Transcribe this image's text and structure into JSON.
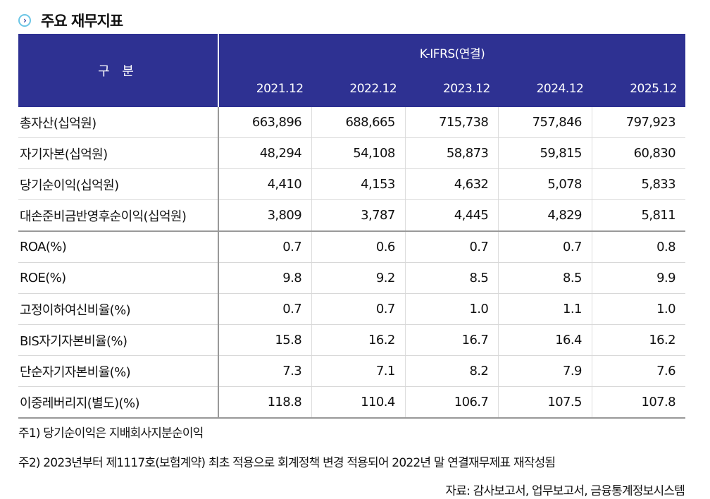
{
  "title": "주요 재무지표",
  "header": {
    "group": "구 분",
    "standard": "K-IFRS(연결)",
    "periods": [
      "2021.12",
      "2022.12",
      "2023.12",
      "2024.12",
      "2025.12"
    ]
  },
  "rows": [
    {
      "label": "총자산(십억원)",
      "values": [
        "663,896",
        "688,665",
        "715,738",
        "757,846",
        "797,923"
      ]
    },
    {
      "label": "자기자본(십억원)",
      "values": [
        "48,294",
        "54,108",
        "58,873",
        "59,815",
        "60,830"
      ]
    },
    {
      "label": "당기순이익(십억원)",
      "values": [
        "4,410",
        "4,153",
        "4,632",
        "5,078",
        "5,833"
      ]
    },
    {
      "label": "대손준비금반영후순이익(십억원)",
      "values": [
        "3,809",
        "3,787",
        "4,445",
        "4,829",
        "5,811"
      ]
    },
    {
      "label": "ROA(%)",
      "values": [
        "0.7",
        "0.6",
        "0.7",
        "0.7",
        "0.8"
      ]
    },
    {
      "label": "ROE(%)",
      "values": [
        "9.8",
        "9.2",
        "8.5",
        "8.5",
        "9.9"
      ]
    },
    {
      "label": "고정이하여신비율(%)",
      "values": [
        "0.7",
        "0.7",
        "1.0",
        "1.1",
        "1.0"
      ]
    },
    {
      "label": "BIS자기자본비율(%)",
      "values": [
        "15.8",
        "16.2",
        "16.7",
        "16.4",
        "16.2"
      ]
    },
    {
      "label": "단순자기자본비율(%)",
      "values": [
        "7.3",
        "7.1",
        "8.2",
        "7.9",
        "7.6"
      ]
    },
    {
      "label": "이중레버리지(별도)(%)",
      "values": [
        "118.8",
        "110.4",
        "106.7",
        "107.5",
        "107.8"
      ]
    }
  ],
  "notes": [
    "주1) 당기순이익은 지배회사지분순이익",
    "주2) 2023년부터 제1117호(보험계약) 최초 적용으로 회계정책 변경 적용되어 2022년 말 연결재무제표 재작성됨"
  ],
  "source": "자료: 감사보고서, 업무보고서, 금융통계정보시스템"
}
